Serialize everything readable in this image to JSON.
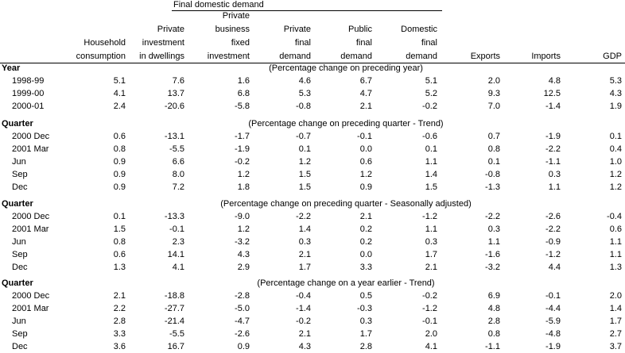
{
  "header": {
    "group": "Final domestic demand",
    "columns": [
      [
        "Household",
        "consumption"
      ],
      [
        "Private",
        "investment",
        "in dwellings"
      ],
      [
        "Private",
        "business",
        "fixed",
        "investment"
      ],
      [
        "Private",
        "final",
        "demand"
      ],
      [
        "Public",
        "final",
        "demand"
      ],
      [
        "Domestic",
        "final",
        "demand"
      ],
      [
        "Exports"
      ],
      [
        "Imports"
      ],
      [
        "GDP"
      ]
    ]
  },
  "sections": [
    {
      "heading": "Year",
      "note": "(Percentage change on preceding year)",
      "rows": [
        {
          "label": "1998-99",
          "values": [
            "5.1",
            "7.6",
            "1.6",
            "4.6",
            "6.7",
            "5.1",
            "2.0",
            "4.8",
            "5.3"
          ]
        },
        {
          "label": "1999-00",
          "values": [
            "4.1",
            "13.7",
            "6.8",
            "5.3",
            "4.7",
            "5.2",
            "9.3",
            "12.5",
            "4.3"
          ]
        },
        {
          "label": "2000-01",
          "values": [
            "2.4",
            "-20.6",
            "-5.8",
            "-0.8",
            "2.1",
            "-0.2",
            "7.0",
            "-1.4",
            "1.9"
          ]
        }
      ]
    },
    {
      "heading": "Quarter",
      "note": "(Percentage change on preceding quarter - Trend)",
      "rows": [
        {
          "label": "2000 Dec",
          "values": [
            "0.6",
            "-13.1",
            "-1.7",
            "-0.7",
            "-0.1",
            "-0.6",
            "0.7",
            "-1.9",
            "0.1"
          ]
        },
        {
          "label": "2001 Mar",
          "values": [
            "0.8",
            "-5.5",
            "-1.9",
            "0.1",
            "0.0",
            "0.1",
            "0.8",
            "-2.2",
            "0.4"
          ]
        },
        {
          "label": "Jun",
          "values": [
            "0.9",
            "6.6",
            "-0.2",
            "1.2",
            "0.6",
            "1.1",
            "0.1",
            "-1.1",
            "1.0"
          ]
        },
        {
          "label": "Sep",
          "values": [
            "0.9",
            "8.0",
            "1.2",
            "1.5",
            "1.2",
            "1.4",
            "-0.8",
            "0.3",
            "1.2"
          ]
        },
        {
          "label": "Dec",
          "values": [
            "0.9",
            "7.2",
            "1.8",
            "1.5",
            "0.9",
            "1.5",
            "-1.3",
            "1.1",
            "1.2"
          ]
        }
      ]
    },
    {
      "heading": "Quarter",
      "note": "(Percentage change on preceding quarter - Seasonally adjusted)",
      "rows": [
        {
          "label": "2000 Dec",
          "values": [
            "0.1",
            "-13.3",
            "-9.0",
            "-2.2",
            "2.1",
            "-1.2",
            "-2.2",
            "-2.6",
            "-0.4"
          ]
        },
        {
          "label": "2001 Mar",
          "values": [
            "1.5",
            "-0.1",
            "1.2",
            "1.4",
            "0.2",
            "1.1",
            "0.3",
            "-2.2",
            "0.6"
          ]
        },
        {
          "label": "Jun",
          "values": [
            "0.8",
            "2.3",
            "-3.2",
            "0.3",
            "0.2",
            "0.3",
            "1.1",
            "-0.9",
            "1.1"
          ]
        },
        {
          "label": "Sep",
          "values": [
            "0.6",
            "14.1",
            "4.3",
            "2.1",
            "0.0",
            "1.7",
            "-1.6",
            "-1.2",
            "1.1"
          ]
        },
        {
          "label": "Dec",
          "values": [
            "1.3",
            "4.1",
            "2.9",
            "1.7",
            "3.3",
            "2.1",
            "-3.2",
            "4.4",
            "1.3"
          ]
        }
      ]
    },
    {
      "heading": "Quarter",
      "note": "(Percentage change on a year earlier - Trend)",
      "rows": [
        {
          "label": "2000 Dec",
          "values": [
            "2.1",
            "-18.8",
            "-2.8",
            "-0.4",
            "0.5",
            "-0.2",
            "6.9",
            "-0.1",
            "2.0"
          ]
        },
        {
          "label": "2001 Mar",
          "values": [
            "2.2",
            "-27.7",
            "-5.0",
            "-1.4",
            "-0.3",
            "-1.2",
            "4.8",
            "-4.4",
            "1.4"
          ]
        },
        {
          "label": "Jun",
          "values": [
            "2.8",
            "-21.4",
            "-4.7",
            "-0.2",
            "0.3",
            "-0.1",
            "2.8",
            "-5.9",
            "1.7"
          ]
        },
        {
          "label": "Sep",
          "values": [
            "3.3",
            "-5.5",
            "-2.6",
            "2.1",
            "1.7",
            "2.0",
            "0.8",
            "-4.8",
            "2.7"
          ]
        },
        {
          "label": "Dec",
          "values": [
            "3.6",
            "16.7",
            "0.9",
            "4.3",
            "2.8",
            "4.1",
            "-1.1",
            "-1.9",
            "3.7"
          ]
        }
      ]
    }
  ]
}
